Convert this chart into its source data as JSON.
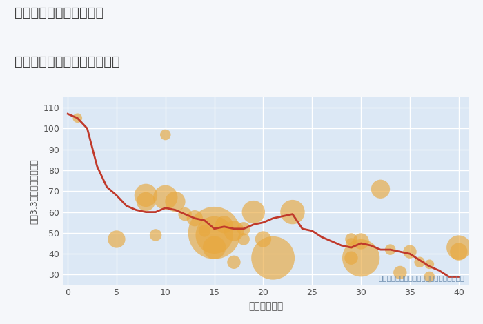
{
  "title_line1": "千葉県千葉市若葉区貝塚",
  "title_line2": "築年数別中古マンション価格",
  "xlabel": "築年数（年）",
  "ylabel": "坪（3.3㎡）単価（万円）",
  "annotation": "円の大きさは、取引のあった物件面積を示す",
  "fig_bg_color": "#f5f7fa",
  "plot_bg_color": "#dce8f5",
  "grid_color": "#ffffff",
  "line_color": "#c0392b",
  "scatter_color": "#e8a83e",
  "scatter_alpha": 0.65,
  "title_color": "#444444",
  "axis_color": "#555555",
  "annotation_color": "#6688aa",
  "xlim": [
    -0.5,
    41
  ],
  "ylim": [
    25,
    115
  ],
  "yticks": [
    30,
    40,
    50,
    60,
    70,
    80,
    90,
    100,
    110
  ],
  "xticks": [
    0,
    5,
    10,
    15,
    20,
    25,
    30,
    35,
    40
  ],
  "line_data": [
    [
      0,
      107
    ],
    [
      1,
      105
    ],
    [
      2,
      100
    ],
    [
      3,
      82
    ],
    [
      4,
      72
    ],
    [
      5,
      68
    ],
    [
      6,
      63
    ],
    [
      7,
      61
    ],
    [
      8,
      60
    ],
    [
      9,
      60
    ],
    [
      10,
      62
    ],
    [
      11,
      61
    ],
    [
      12,
      59
    ],
    [
      13,
      57
    ],
    [
      14,
      56
    ],
    [
      15,
      52
    ],
    [
      16,
      53
    ],
    [
      17,
      52
    ],
    [
      18,
      52
    ],
    [
      19,
      54
    ],
    [
      20,
      55
    ],
    [
      21,
      57
    ],
    [
      22,
      58
    ],
    [
      23,
      59
    ],
    [
      24,
      52
    ],
    [
      25,
      51
    ],
    [
      26,
      48
    ],
    [
      27,
      46
    ],
    [
      28,
      44
    ],
    [
      29,
      43
    ],
    [
      30,
      45
    ],
    [
      31,
      44
    ],
    [
      32,
      42
    ],
    [
      33,
      42
    ],
    [
      34,
      41
    ],
    [
      35,
      40
    ],
    [
      36,
      37
    ],
    [
      37,
      34
    ],
    [
      38,
      32
    ],
    [
      39,
      29
    ],
    [
      40,
      29
    ]
  ],
  "scatter_data": [
    [
      1,
      105,
      8
    ],
    [
      5,
      47,
      14
    ],
    [
      8,
      68,
      18
    ],
    [
      8,
      65,
      15
    ],
    [
      9,
      49,
      10
    ],
    [
      10,
      97,
      9
    ],
    [
      10,
      67,
      19
    ],
    [
      11,
      65,
      16
    ],
    [
      12,
      59,
      11
    ],
    [
      13,
      57,
      13
    ],
    [
      14,
      51,
      10
    ],
    [
      15,
      49,
      28
    ],
    [
      15,
      50,
      38
    ],
    [
      15,
      43,
      18
    ],
    [
      16,
      54,
      14
    ],
    [
      17,
      51,
      16
    ],
    [
      17,
      36,
      11
    ],
    [
      18,
      52,
      11
    ],
    [
      18,
      47,
      10
    ],
    [
      19,
      60,
      18
    ],
    [
      20,
      47,
      13
    ],
    [
      21,
      38,
      32
    ],
    [
      23,
      60,
      19
    ],
    [
      29,
      47,
      10
    ],
    [
      29,
      38,
      11
    ],
    [
      29,
      45,
      9
    ],
    [
      30,
      46,
      13
    ],
    [
      30,
      38,
      28
    ],
    [
      32,
      71,
      15
    ],
    [
      33,
      42,
      9
    ],
    [
      34,
      31,
      11
    ],
    [
      35,
      41,
      11
    ],
    [
      36,
      36,
      9
    ],
    [
      37,
      29,
      9
    ],
    [
      37,
      35,
      8
    ],
    [
      40,
      43,
      19
    ],
    [
      40,
      41,
      14
    ]
  ]
}
